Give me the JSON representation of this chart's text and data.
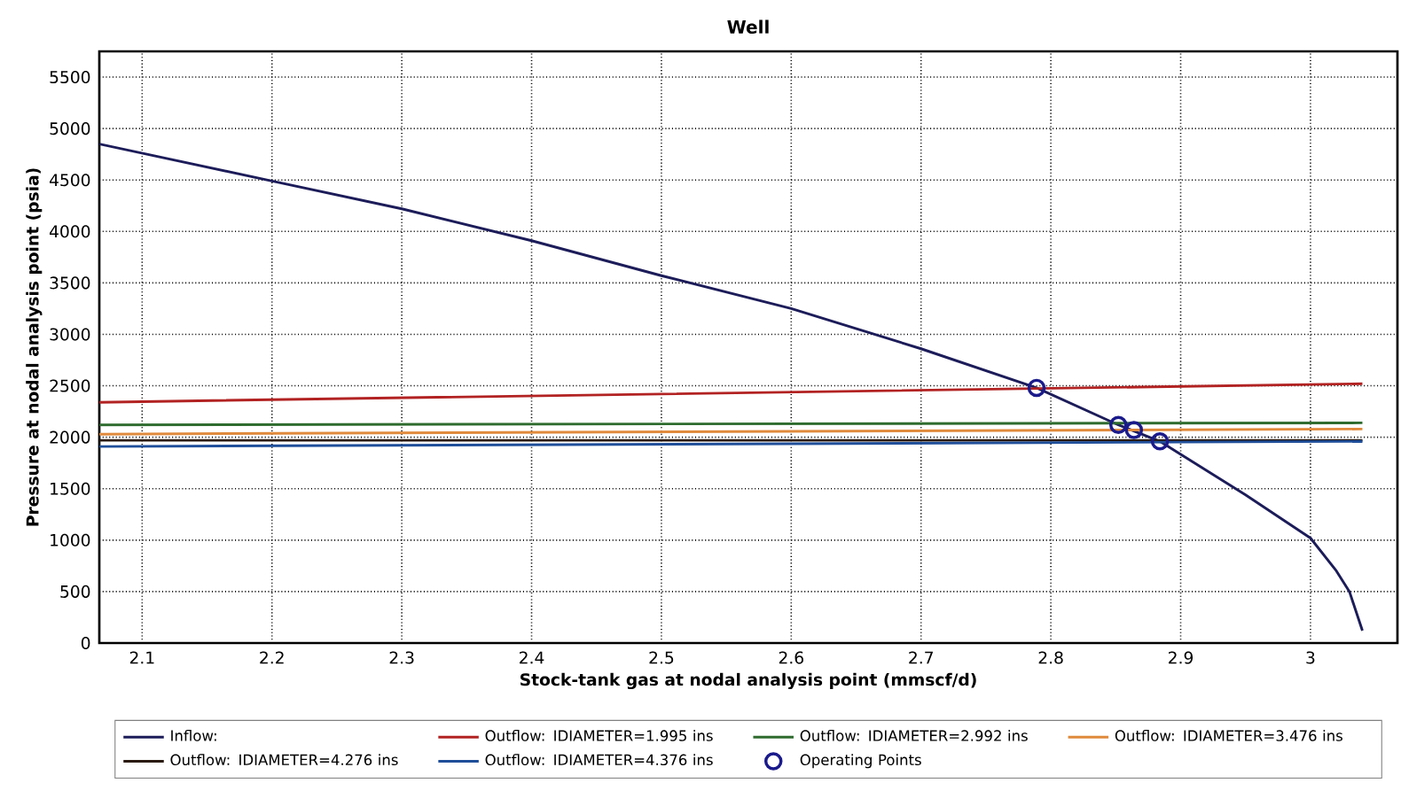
{
  "chart_data": {
    "type": "line",
    "title": "Well",
    "xlabel": "Stock-tank gas at nodal analysis point (mmscf/d)",
    "ylabel": "Pressure at nodal analysis point (psia)",
    "xlim": [
      2.067,
      3.067
    ],
    "ylim": [
      0,
      5750
    ],
    "xticks": [
      2.1,
      2.2,
      2.3,
      2.4,
      2.5,
      2.6,
      2.7,
      2.8,
      2.9,
      3
    ],
    "yticks": [
      0,
      500,
      1000,
      1500,
      2000,
      2500,
      3000,
      3500,
      4000,
      4500,
      5000,
      5500
    ],
    "grid": true,
    "legend": "bottom",
    "line_style": "solid",
    "series": [
      {
        "name": "Inflow:",
        "color": "#1c1c5a",
        "x": [
          2.067,
          2.2,
          2.3,
          2.4,
          2.5,
          2.6,
          2.7,
          2.789,
          2.852,
          2.884,
          2.95,
          3.0,
          3.02,
          3.03,
          3.04
        ],
        "values": [
          4850,
          4490,
          4220,
          3910,
          3570,
          3250,
          2860,
          2480,
          2120,
          1960,
          1440,
          1020,
          700,
          500,
          120
        ]
      },
      {
        "name": "Outflow: IDIAMETER=1.995 ins",
        "color": "#b22222",
        "x": [
          2.067,
          2.5,
          3.04
        ],
        "values": [
          2340,
          2420,
          2520
        ]
      },
      {
        "name": "Outflow: IDIAMETER=2.992 ins",
        "color": "#2e6b2e",
        "x": [
          2.067,
          3.04
        ],
        "values": [
          2120,
          2140
        ]
      },
      {
        "name": "Outflow: IDIAMETER=3.476 ins",
        "color": "#e08a3c",
        "x": [
          2.067,
          3.04
        ],
        "values": [
          2030,
          2080
        ]
      },
      {
        "name": "Outflow: IDIAMETER=4.276 ins",
        "color": "#2a1a10",
        "x": [
          2.067,
          3.04
        ],
        "values": [
          1970,
          1970
        ]
      },
      {
        "name": "Outflow: IDIAMETER=4.376 ins",
        "color": "#1f4e99",
        "x": [
          2.067,
          3.04
        ],
        "values": [
          1910,
          1960
        ]
      },
      {
        "name": "Operating Points",
        "type": "scatter",
        "marker": "circle",
        "color": "#1a1a8c",
        "x": [
          2.789,
          2.852,
          2.864,
          2.884
        ],
        "values": [
          2480,
          2120,
          2070,
          1960
        ]
      }
    ]
  }
}
